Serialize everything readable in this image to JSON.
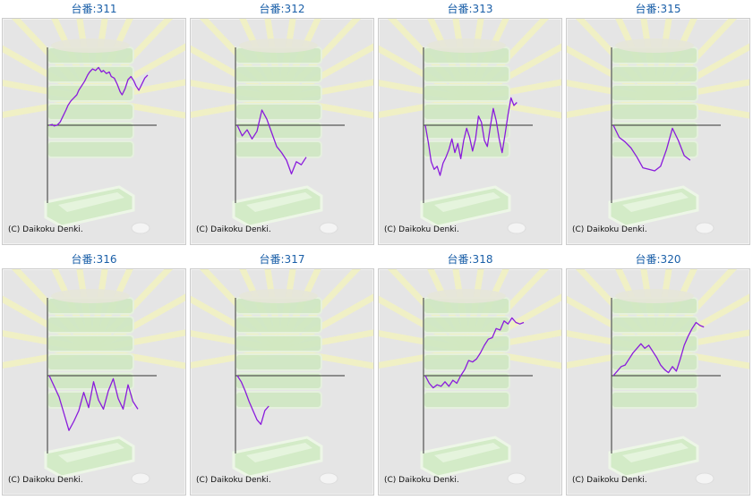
{
  "colors": {
    "title": "#1a5fa8",
    "graph_line": "#8a1bdc",
    "axis": "#333333",
    "panel_bg": "#e5e5e5"
  },
  "machines": [
    {
      "title": "台番:311",
      "copyright": "(C) Daikoku Denki.",
      "trace": [
        [
          0.0,
          0.0
        ],
        [
          0.03,
          0.01
        ],
        [
          0.05,
          -0.01
        ],
        [
          0.08,
          0.0
        ],
        [
          0.11,
          0.04
        ],
        [
          0.14,
          0.12
        ],
        [
          0.17,
          0.2
        ],
        [
          0.19,
          0.26
        ],
        [
          0.22,
          0.32
        ],
        [
          0.25,
          0.36
        ],
        [
          0.28,
          0.4
        ],
        [
          0.3,
          0.46
        ],
        [
          0.33,
          0.52
        ],
        [
          0.36,
          0.58
        ],
        [
          0.39,
          0.66
        ],
        [
          0.41,
          0.7
        ],
        [
          0.44,
          0.74
        ],
        [
          0.47,
          0.72
        ],
        [
          0.5,
          0.76
        ],
        [
          0.53,
          0.7
        ],
        [
          0.55,
          0.72
        ],
        [
          0.58,
          0.68
        ],
        [
          0.61,
          0.7
        ],
        [
          0.63,
          0.64
        ],
        [
          0.66,
          0.62
        ],
        [
          0.69,
          0.54
        ],
        [
          0.72,
          0.44
        ],
        [
          0.74,
          0.4
        ],
        [
          0.77,
          0.48
        ],
        [
          0.8,
          0.6
        ],
        [
          0.83,
          0.64
        ],
        [
          0.86,
          0.58
        ],
        [
          0.88,
          0.52
        ],
        [
          0.91,
          0.46
        ],
        [
          0.94,
          0.54
        ],
        [
          0.97,
          0.62
        ],
        [
          1.0,
          0.66
        ]
      ]
    },
    {
      "title": "台番:312",
      "copyright": "(C) Daikoku Denki.",
      "trace": [
        [
          0.0,
          0.0
        ],
        [
          0.05,
          -0.14
        ],
        [
          0.1,
          -0.06
        ],
        [
          0.15,
          -0.18
        ],
        [
          0.2,
          -0.08
        ],
        [
          0.25,
          0.2
        ],
        [
          0.3,
          0.08
        ],
        [
          0.35,
          -0.1
        ],
        [
          0.4,
          -0.28
        ],
        [
          0.45,
          -0.36
        ],
        [
          0.5,
          -0.46
        ],
        [
          0.55,
          -0.64
        ],
        [
          0.6,
          -0.48
        ],
        [
          0.65,
          -0.52
        ],
        [
          0.7,
          -0.42
        ]
      ]
    },
    {
      "title": "台番:313",
      "copyright": "(C) Daikoku Denki.",
      "trace": [
        [
          0.0,
          0.0
        ],
        [
          0.03,
          -0.22
        ],
        [
          0.06,
          -0.48
        ],
        [
          0.09,
          -0.58
        ],
        [
          0.12,
          -0.54
        ],
        [
          0.15,
          -0.66
        ],
        [
          0.18,
          -0.5
        ],
        [
          0.21,
          -0.42
        ],
        [
          0.24,
          -0.32
        ],
        [
          0.27,
          -0.18
        ],
        [
          0.3,
          -0.36
        ],
        [
          0.33,
          -0.24
        ],
        [
          0.36,
          -0.44
        ],
        [
          0.39,
          -0.2
        ],
        [
          0.42,
          -0.04
        ],
        [
          0.45,
          -0.16
        ],
        [
          0.48,
          -0.34
        ],
        [
          0.51,
          -0.18
        ],
        [
          0.54,
          0.12
        ],
        [
          0.57,
          0.04
        ],
        [
          0.6,
          -0.2
        ],
        [
          0.63,
          -0.28
        ],
        [
          0.66,
          -0.02
        ],
        [
          0.69,
          0.22
        ],
        [
          0.72,
          0.06
        ],
        [
          0.75,
          -0.18
        ],
        [
          0.78,
          -0.36
        ],
        [
          0.81,
          -0.12
        ],
        [
          0.84,
          0.14
        ],
        [
          0.87,
          0.36
        ],
        [
          0.9,
          0.26
        ],
        [
          0.93,
          0.3
        ]
      ]
    },
    {
      "title": "台番:315",
      "copyright": "(C) Daikoku Denki.",
      "trace": [
        [
          0.0,
          0.0
        ],
        [
          0.06,
          -0.16
        ],
        [
          0.12,
          -0.22
        ],
        [
          0.18,
          -0.3
        ],
        [
          0.24,
          -0.42
        ],
        [
          0.3,
          -0.56
        ],
        [
          0.36,
          -0.58
        ],
        [
          0.42,
          -0.6
        ],
        [
          0.48,
          -0.54
        ],
        [
          0.54,
          -0.32
        ],
        [
          0.6,
          -0.04
        ],
        [
          0.66,
          -0.2
        ],
        [
          0.72,
          -0.4
        ],
        [
          0.78,
          -0.46
        ]
      ]
    },
    {
      "title": "台番:316",
      "copyright": "(C) Daikoku Denki.",
      "trace": [
        [
          0.0,
          0.0
        ],
        [
          0.05,
          -0.14
        ],
        [
          0.1,
          -0.28
        ],
        [
          0.15,
          -0.5
        ],
        [
          0.2,
          -0.72
        ],
        [
          0.25,
          -0.6
        ],
        [
          0.3,
          -0.46
        ],
        [
          0.35,
          -0.22
        ],
        [
          0.4,
          -0.42
        ],
        [
          0.45,
          -0.08
        ],
        [
          0.5,
          -0.32
        ],
        [
          0.55,
          -0.44
        ],
        [
          0.6,
          -0.2
        ],
        [
          0.65,
          -0.04
        ],
        [
          0.7,
          -0.3
        ],
        [
          0.75,
          -0.44
        ],
        [
          0.8,
          -0.12
        ],
        [
          0.85,
          -0.34
        ],
        [
          0.9,
          -0.44
        ]
      ]
    },
    {
      "title": "台番:317",
      "copyright": "(C) Daikoku Denki.",
      "trace": [
        [
          0.0,
          0.0
        ],
        [
          0.04,
          -0.08
        ],
        [
          0.08,
          -0.2
        ],
        [
          0.12,
          -0.34
        ],
        [
          0.16,
          -0.46
        ],
        [
          0.2,
          -0.58
        ],
        [
          0.24,
          -0.64
        ],
        [
          0.28,
          -0.46
        ],
        [
          0.32,
          -0.4
        ]
      ]
    },
    {
      "title": "台番:318",
      "copyright": "(C) Daikoku Denki.",
      "trace": [
        [
          0.0,
          0.0
        ],
        [
          0.04,
          -0.1
        ],
        [
          0.08,
          -0.16
        ],
        [
          0.12,
          -0.12
        ],
        [
          0.16,
          -0.14
        ],
        [
          0.2,
          -0.08
        ],
        [
          0.24,
          -0.14
        ],
        [
          0.28,
          -0.06
        ],
        [
          0.32,
          -0.1
        ],
        [
          0.36,
          0.0
        ],
        [
          0.4,
          0.08
        ],
        [
          0.44,
          0.2
        ],
        [
          0.48,
          0.18
        ],
        [
          0.52,
          0.22
        ],
        [
          0.56,
          0.3
        ],
        [
          0.6,
          0.4
        ],
        [
          0.64,
          0.48
        ],
        [
          0.68,
          0.5
        ],
        [
          0.72,
          0.62
        ],
        [
          0.76,
          0.6
        ],
        [
          0.8,
          0.72
        ],
        [
          0.84,
          0.68
        ],
        [
          0.88,
          0.76
        ],
        [
          0.92,
          0.7
        ],
        [
          0.96,
          0.68
        ],
        [
          1.0,
          0.7
        ]
      ]
    },
    {
      "title": "台番:320",
      "copyright": "(C) Daikoku Denki.",
      "trace": [
        [
          0.0,
          0.0
        ],
        [
          0.04,
          0.06
        ],
        [
          0.08,
          0.12
        ],
        [
          0.12,
          0.14
        ],
        [
          0.16,
          0.22
        ],
        [
          0.2,
          0.3
        ],
        [
          0.24,
          0.36
        ],
        [
          0.28,
          0.42
        ],
        [
          0.32,
          0.36
        ],
        [
          0.36,
          0.4
        ],
        [
          0.4,
          0.32
        ],
        [
          0.44,
          0.24
        ],
        [
          0.48,
          0.14
        ],
        [
          0.52,
          0.08
        ],
        [
          0.56,
          0.04
        ],
        [
          0.6,
          0.12
        ],
        [
          0.64,
          0.06
        ],
        [
          0.68,
          0.22
        ],
        [
          0.72,
          0.4
        ],
        [
          0.76,
          0.52
        ],
        [
          0.8,
          0.62
        ],
        [
          0.84,
          0.7
        ],
        [
          0.88,
          0.66
        ],
        [
          0.92,
          0.64
        ]
      ]
    }
  ]
}
